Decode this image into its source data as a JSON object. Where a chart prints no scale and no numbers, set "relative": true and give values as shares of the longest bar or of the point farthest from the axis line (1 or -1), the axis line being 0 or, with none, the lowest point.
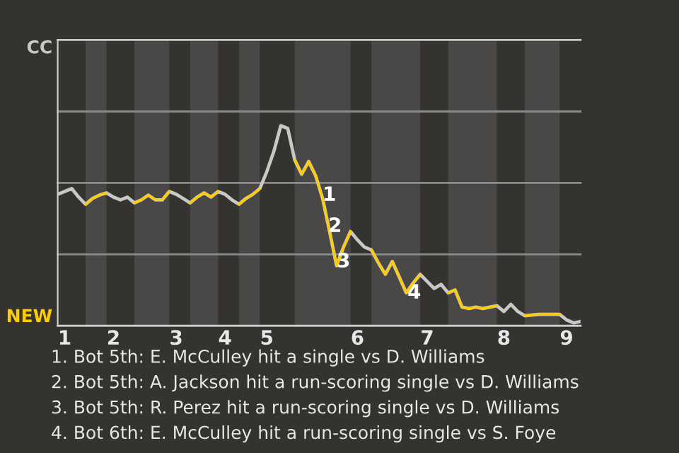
{
  "chart_data": {
    "type": "line",
    "relative": true,
    "categories": [
      null,
      "1",
      null,
      null,
      null,
      null,
      null,
      null,
      "2",
      null,
      null,
      null,
      null,
      null,
      null,
      null,
      null,
      "3",
      null,
      null,
      null,
      null,
      null,
      null,
      "4",
      null,
      null,
      null,
      null,
      null,
      "5",
      null,
      null,
      null,
      null,
      null,
      null,
      null,
      null,
      null,
      null,
      null,
      null,
      "6",
      null,
      null,
      null,
      null,
      null,
      null,
      null,
      null,
      null,
      "7",
      null,
      null,
      null,
      null,
      null,
      null,
      null,
      null,
      null,
      null,
      "8",
      null,
      null,
      null,
      null,
      null,
      null,
      null,
      null,
      "9",
      null,
      null
    ],
    "grid": false,
    "marker": "none",
    "line_style": "solid",
    "ref_lines": [
      {
        "axis": "y",
        "value": 0,
        "label": "NEW",
        "color": "#cfcfcf"
      },
      {
        "axis": "y",
        "value": 0.357,
        "color": "#8a8a8a"
      },
      {
        "axis": "y",
        "value": 0.714,
        "color": "#8a8a8a"
      },
      {
        "axis": "y",
        "value": 1.071,
        "color": "#8a8a8a"
      },
      {
        "axis": "y",
        "value": 1.429,
        "label": "CC",
        "color": "#c8c8c8"
      }
    ],
    "series": [
      {
        "color": "#c8c8c8",
        "values": [
          0.657,
          0.671,
          0.686,
          0.643,
          0.607,
          0.636,
          0.653,
          0.664,
          0.643,
          0.629,
          0.643,
          0.614,
          0.629,
          0.653,
          0.629,
          0.629,
          0.671,
          0.657,
          0.636,
          0.614,
          0.643,
          0.664,
          0.643,
          0.671,
          0.657,
          0.629,
          0.607,
          0.636,
          0.657,
          0.686,
          0.771,
          0.871,
          1,
          0.986,
          0.829,
          0.757,
          0.821,
          0.75,
          0.636,
          0.471,
          0.3,
          0.393,
          0.471,
          0.429,
          0.393,
          0.379,
          0.314,
          0.257,
          0.321,
          0.243,
          0.164,
          0.214,
          0.257,
          0.221,
          0.186,
          0.207,
          0.164,
          0.179,
          0.093,
          0.086,
          0.093,
          0.086,
          0.093,
          0.1,
          0.071,
          0.107,
          0.071,
          0.05,
          0.053,
          0.057,
          0.057,
          0.057,
          0.057,
          0.029,
          0.014,
          0.021
        ],
        "colors": [
          "#c8c8c8",
          "#c8c8c8",
          "#c8c8c8",
          "#c8c8c8",
          "#c8c8c8",
          "#ffcc00",
          "#ffcc00",
          "#ffcc00",
          "#c8c8c8",
          "#c8c8c8",
          "#c8c8c8",
          "#c8c8c8",
          "#ffcc00",
          "#ffcc00",
          "#ffcc00",
          "#ffcc00",
          "#ffcc00",
          "#c8c8c8",
          "#c8c8c8",
          "#c8c8c8",
          "#ffcc00",
          "#ffcc00",
          "#ffcc00",
          "#ffcc00",
          "#c8c8c8",
          "#c8c8c8",
          "#c8c8c8",
          "#ffcc00",
          "#ffcc00",
          "#ffcc00",
          "#c8c8c8",
          "#c8c8c8",
          "#c8c8c8",
          "#c8c8c8",
          "#c8c8c8",
          "#ffcc00",
          "#ffcc00",
          "#ffcc00",
          "#ffcc00",
          "#ffcc00",
          "#ffcc00",
          "#ffcc00",
          "#ffcc00",
          "#c8c8c8",
          "#c8c8c8",
          "#c8c8c8",
          "#ffcc00",
          "#ffcc00",
          "#ffcc00",
          "#ffcc00",
          "#ffcc00",
          "#ffcc00",
          "#ffcc00",
          "#c8c8c8",
          "#c8c8c8",
          "#c8c8c8",
          "#c8c8c8",
          "#ffcc00",
          "#ffcc00",
          "#ffcc00",
          "#ffcc00",
          "#ffcc00",
          "#ffcc00",
          "#ffcc00",
          "#c8c8c8",
          "#c8c8c8",
          "#c8c8c8",
          "#c8c8c8",
          "#ffcc00",
          "#ffcc00",
          "#ffcc00",
          "#ffcc00",
          "#ffcc00",
          "#c8c8c8",
          "#c8c8c8",
          "#c8c8c8"
        ]
      }
    ],
    "annotations": [
      "1",
      "2",
      "3",
      "4",
      "1. Bot 5th: E. McCulley hit a single vs D. Williams",
      "2. Bot 5th: A. Jackson hit a run-scoring single vs D. Williams",
      "3. Bot 5th: R. Perez hit a run-scoring single vs D. Williams",
      "4. Bot 6th: E. McCulley hit a run-scoring single vs S. Foye"
    ]
  }
}
